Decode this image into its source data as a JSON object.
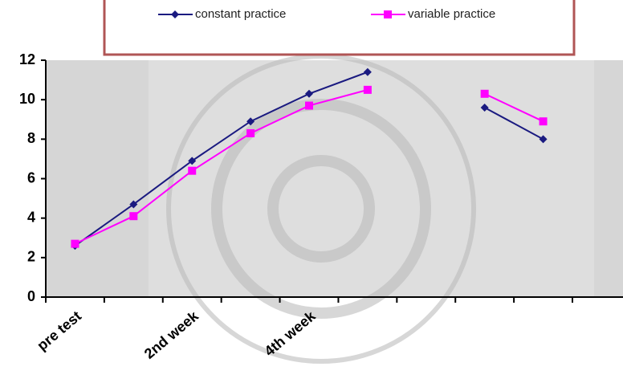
{
  "chart_data": {
    "type": "line",
    "categories": [
      "pre test",
      null,
      "2nd week",
      null,
      "4th week",
      null,
      null,
      null,
      null
    ],
    "series": [
      {
        "name": "constant practice",
        "color": "#1a1a80",
        "marker": "diamond",
        "values": [
          2.6,
          4.7,
          6.9,
          8.9,
          10.3,
          11.4,
          null,
          9.6,
          8.0
        ]
      },
      {
        "name": "variable practice",
        "color": "#ff00ff",
        "marker": "square",
        "values": [
          2.7,
          4.1,
          6.4,
          8.3,
          9.7,
          10.5,
          null,
          10.3,
          8.9
        ]
      }
    ],
    "ylim": [
      0,
      12
    ],
    "yticks": [
      0,
      2,
      4,
      6,
      8,
      10,
      12
    ],
    "grid": false,
    "legend": "top"
  }
}
